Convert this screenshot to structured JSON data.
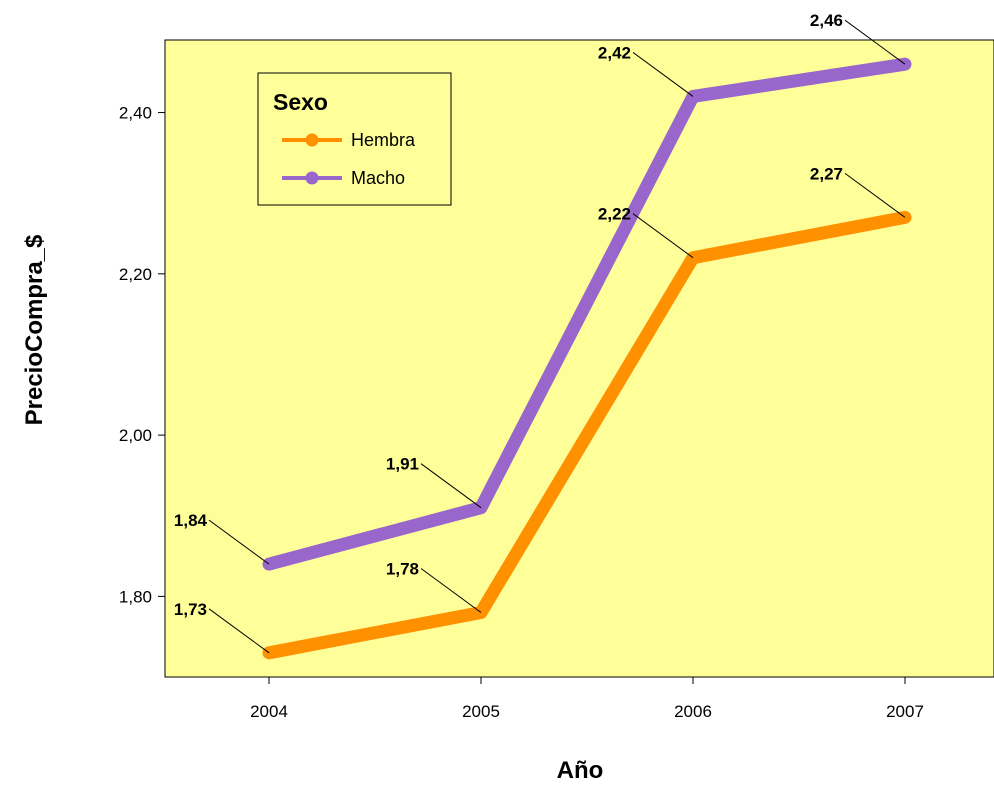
{
  "chart_data": {
    "type": "line",
    "xlabel": "Año",
    "ylabel": "PrecioCompra_$",
    "categories": [
      "2004",
      "2005",
      "2006",
      "2007"
    ],
    "ylim": [
      1.7,
      2.49
    ],
    "y_ticks": [
      1.8,
      2.0,
      2.2,
      2.4
    ],
    "y_tick_labels": [
      "1,80",
      "2,00",
      "2,20",
      "2,40"
    ],
    "grid": false,
    "legend": {
      "title": "Sexo",
      "position": "top-left"
    },
    "series": [
      {
        "name": "Hembra",
        "color": "#ff9000",
        "values": [
          1.73,
          1.78,
          2.22,
          2.27
        ],
        "labels": [
          "1,73",
          "1,78",
          "2,22",
          "2,27"
        ]
      },
      {
        "name": "Macho",
        "color": "#9966cc",
        "values": [
          1.84,
          1.91,
          2.42,
          2.46
        ],
        "labels": [
          "1,84",
          "1,91",
          "2,42",
          "2,46"
        ]
      }
    ],
    "plot_background": "#ffff99"
  }
}
